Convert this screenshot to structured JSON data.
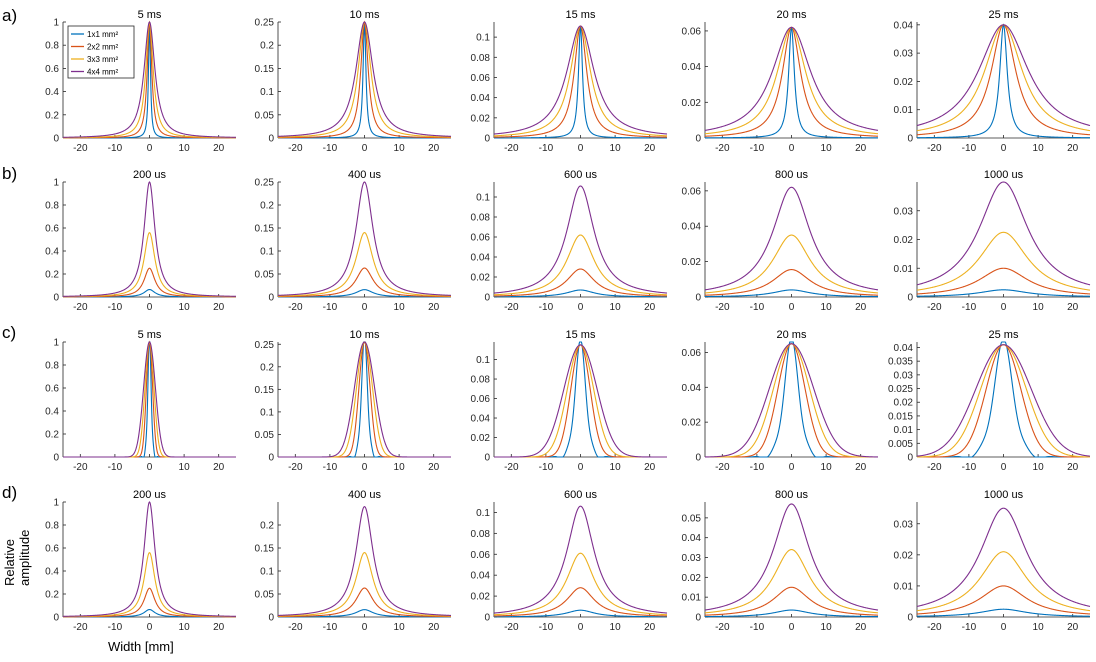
{
  "figure": {
    "row_labels": [
      "a)",
      "b)",
      "c)",
      "d)"
    ],
    "xlabel": "Width [mm]",
    "ylabel_line1": "Relative",
    "ylabel_line2": "amplitude",
    "legend": [
      "1x1 mm²",
      "2x2 mm²",
      "3x3 mm²",
      "4x4 mm²"
    ]
  },
  "colors": {
    "series": [
      "#0072BD",
      "#D95319",
      "#EDB120",
      "#7E2F8E"
    ],
    "axis": "#262626"
  },
  "chart_data": {
    "type": "line",
    "shared": {
      "xlim": [
        -25,
        25
      ],
      "xticks": [
        -20,
        -10,
        0,
        10,
        20
      ],
      "series_names": [
        "1x1 mm²",
        "2x2 mm²",
        "3x3 mm²",
        "4x4 mm²"
      ],
      "x_range": "curves sampled over -25 to 25 mm"
    },
    "rows": [
      {
        "label": "a)",
        "mode": "time-peak",
        "panels": [
          {
            "title": "5 ms",
            "ylim": [
              0,
              1
            ],
            "yticks": [
              "0",
              "0.2",
              "0.4",
              "0.6",
              "0.8",
              "1"
            ],
            "peaks": [
              1,
              1,
              1,
              1
            ],
            "widths": [
              0.35,
              0.8,
              1.3,
              1.9
            ]
          },
          {
            "title": "10 ms",
            "ylim": [
              0,
              0.25
            ],
            "yticks": [
              "0",
              "0.05",
              "0.1",
              "0.15",
              "0.2",
              "0.25"
            ],
            "peaks": [
              0.25,
              0.25,
              0.25,
              0.25
            ],
            "widths": [
              0.5,
              1.3,
              2.2,
              3.0
            ]
          },
          {
            "title": "15 ms",
            "ylim": [
              0,
              0.115
            ],
            "yticks": [
              "0",
              "0.02",
              "0.04",
              "0.06",
              "0.08",
              "0.1"
            ],
            "peaks": [
              0.111,
              0.111,
              0.111,
              0.111
            ],
            "widths": [
              0.7,
              2.2,
              3.5,
              4.8
            ]
          },
          {
            "title": "20 ms",
            "ylim": [
              0,
              0.065
            ],
            "yticks": [
              "0",
              "0.02",
              "0.04",
              "0.06"
            ],
            "peaks": [
              0.062,
              0.062,
              0.062,
              0.062
            ],
            "widths": [
              1.0,
              3.2,
              5.0,
              6.8
            ]
          },
          {
            "title": "25 ms",
            "ylim": [
              0,
              0.041
            ],
            "yticks": [
              "0",
              "0.01",
              "0.02",
              "0.03",
              "0.04"
            ],
            "peaks": [
              0.04,
              0.04,
              0.04,
              0.04
            ],
            "widths": [
              1.3,
              4.3,
              6.6,
              8.8
            ]
          }
        ]
      },
      {
        "label": "b)",
        "mode": "scaled",
        "panels": [
          {
            "title": "200 us",
            "ylim": [
              0,
              1
            ],
            "yticks": [
              "0",
              "0.2",
              "0.4",
              "0.6",
              "0.8",
              "1"
            ],
            "peaks": [
              0.065,
              0.25,
              0.56,
              1.0
            ],
            "widths": [
              1.9,
              1.9,
              1.9,
              1.9
            ]
          },
          {
            "title": "400 us",
            "ylim": [
              0,
              0.25
            ],
            "yticks": [
              "0",
              "0.05",
              "0.1",
              "0.15",
              "0.2",
              "0.25"
            ],
            "peaks": [
              0.016,
              0.063,
              0.14,
              0.25
            ],
            "widths": [
              3.0,
              3.0,
              3.0,
              3.0
            ]
          },
          {
            "title": "600 us",
            "ylim": [
              0,
              0.115
            ],
            "yticks": [
              "0",
              "0.02",
              "0.04",
              "0.06",
              "0.08",
              "0.1"
            ],
            "peaks": [
              0.007,
              0.028,
              0.062,
              0.111
            ],
            "widths": [
              4.8,
              4.8,
              4.8,
              4.8
            ]
          },
          {
            "title": "800 us",
            "ylim": [
              0,
              0.065
            ],
            "yticks": [
              "0",
              "0.02",
              "0.04",
              "0.06"
            ],
            "peaks": [
              0.004,
              0.0155,
              0.035,
              0.062
            ],
            "widths": [
              6.6,
              6.6,
              6.6,
              6.6
            ]
          },
          {
            "title": "1000 us",
            "ylim": [
              0,
              0.04
            ],
            "yticks": [
              "0",
              "0.01",
              "0.02",
              "0.03"
            ],
            "peaks": [
              0.0025,
              0.01,
              0.0225,
              0.04
            ],
            "widths": [
              8.6,
              8.6,
              8.6,
              8.6
            ]
          }
        ]
      },
      {
        "label": "c)",
        "mode": "time-peak-gauss",
        "panels": [
          {
            "title": "5 ms",
            "ylim": [
              0,
              1
            ],
            "yticks": [
              "0",
              "0.2",
              "0.4",
              "0.6",
              "0.8",
              "1"
            ],
            "peaks": [
              1,
              1,
              1,
              1
            ],
            "widths": [
              0.5,
              0.9,
              1.3,
              1.7
            ]
          },
          {
            "title": "10 ms",
            "ylim": [
              0,
              0.255
            ],
            "yticks": [
              "0",
              "0.05",
              "0.1",
              "0.15",
              "0.2",
              "0.25"
            ],
            "peaks": [
              0.255,
              0.255,
              0.255,
              0.255
            ],
            "widths": [
              0.9,
              1.6,
              2.3,
              2.9
            ]
          },
          {
            "title": "15 ms",
            "ylim": [
              0,
              0.118
            ],
            "yticks": [
              "0",
              "0.02",
              "0.04",
              "0.06",
              "0.08",
              "0.1"
            ],
            "peaks": [
              0.115,
              0.115,
              0.115,
              0.115
            ],
            "widths": [
              1.6,
              2.8,
              3.8,
              4.8
            ]
          },
          {
            "title": "20 ms",
            "ylim": [
              0,
              0.066
            ],
            "yticks": [
              "0",
              "0.02",
              "0.04",
              "0.06"
            ],
            "peaks": [
              0.065,
              0.065,
              0.065,
              0.065
            ],
            "widths": [
              2.2,
              3.9,
              5.2,
              6.4
            ]
          },
          {
            "title": "25 ms",
            "ylim": [
              0,
              0.042
            ],
            "yticks": [
              "0",
              "0.005",
              "0.01",
              "0.015",
              "0.02",
              "0.025",
              "0.03",
              "0.035",
              "0.04"
            ],
            "peaks": [
              0.041,
              0.041,
              0.041,
              0.041
            ],
            "widths": [
              2.9,
              5.0,
              6.6,
              8.0
            ]
          }
        ]
      },
      {
        "label": "d)",
        "mode": "scaled",
        "panels": [
          {
            "title": "200 us",
            "ylim": [
              0,
              1
            ],
            "yticks": [
              "0",
              "0.2",
              "0.4",
              "0.6",
              "0.8",
              "1"
            ],
            "peaks": [
              0.065,
              0.25,
              0.56,
              1.0
            ],
            "widths": [
              1.9,
              1.9,
              1.9,
              1.9
            ]
          },
          {
            "title": "400 us",
            "ylim": [
              0,
              0.25
            ],
            "yticks": [
              "0",
              "0.05",
              "0.1",
              "0.15",
              "0.2"
            ],
            "peaks": [
              0.016,
              0.063,
              0.14,
              0.24
            ],
            "widths": [
              3.0,
              3.0,
              3.0,
              3.0
            ]
          },
          {
            "title": "600 us",
            "ylim": [
              0,
              0.11
            ],
            "yticks": [
              "0",
              "0.02",
              "0.04",
              "0.06",
              "0.08",
              "0.1"
            ],
            "peaks": [
              0.0065,
              0.028,
              0.061,
              0.106
            ],
            "widths": [
              4.8,
              4.8,
              4.8,
              4.8
            ]
          },
          {
            "title": "800 us",
            "ylim": [
              0,
              0.058
            ],
            "yticks": [
              "0",
              "0.01",
              "0.02",
              "0.03",
              "0.04",
              "0.05"
            ],
            "peaks": [
              0.0035,
              0.015,
              0.034,
              0.057
            ],
            "widths": [
              6.4,
              6.4,
              6.4,
              6.4
            ]
          },
          {
            "title": "1000 us",
            "ylim": [
              0,
              0.037
            ],
            "yticks": [
              "0",
              "0.01",
              "0.02",
              "0.03"
            ],
            "peaks": [
              0.0025,
              0.01,
              0.021,
              0.035
            ],
            "widths": [
              8.2,
              8.2,
              8.2,
              8.2
            ]
          }
        ]
      }
    ]
  }
}
